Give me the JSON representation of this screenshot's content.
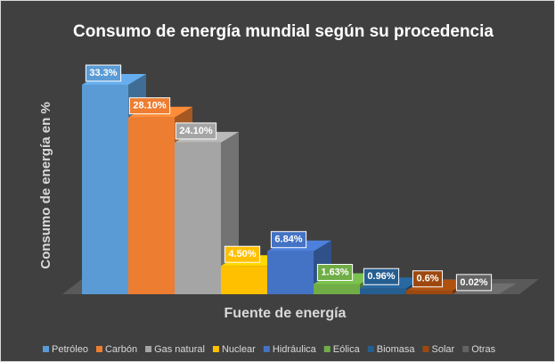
{
  "chart_data": {
    "type": "bar3d",
    "title": "Consumo de energía mundial según su procedencia",
    "x_label": "Fuente de energía",
    "y_label": "Consumo de energía en %",
    "categories": [
      "Petróleo",
      "Carbón",
      "Gas natural",
      "Nuclear",
      "Hidráulica",
      "Eólica",
      "Biomasa",
      "Solar",
      "Otras"
    ],
    "values": [
      33.3,
      28.1,
      24.1,
      4.5,
      6.84,
      1.63,
      0.96,
      0.6,
      0.02
    ],
    "value_labels": [
      "33.3%",
      "28.10%",
      "24.10%",
      "4.50%",
      "6.84%",
      "1.63%",
      "0.96%",
      "0.6%",
      "0.02%"
    ],
    "colors": [
      "#5b9bd5",
      "#ed7d31",
      "#a5a5a5",
      "#ffc000",
      "#4472c4",
      "#70ad47",
      "#255e91",
      "#9e480e",
      "#636363"
    ],
    "legend": "bottom"
  }
}
